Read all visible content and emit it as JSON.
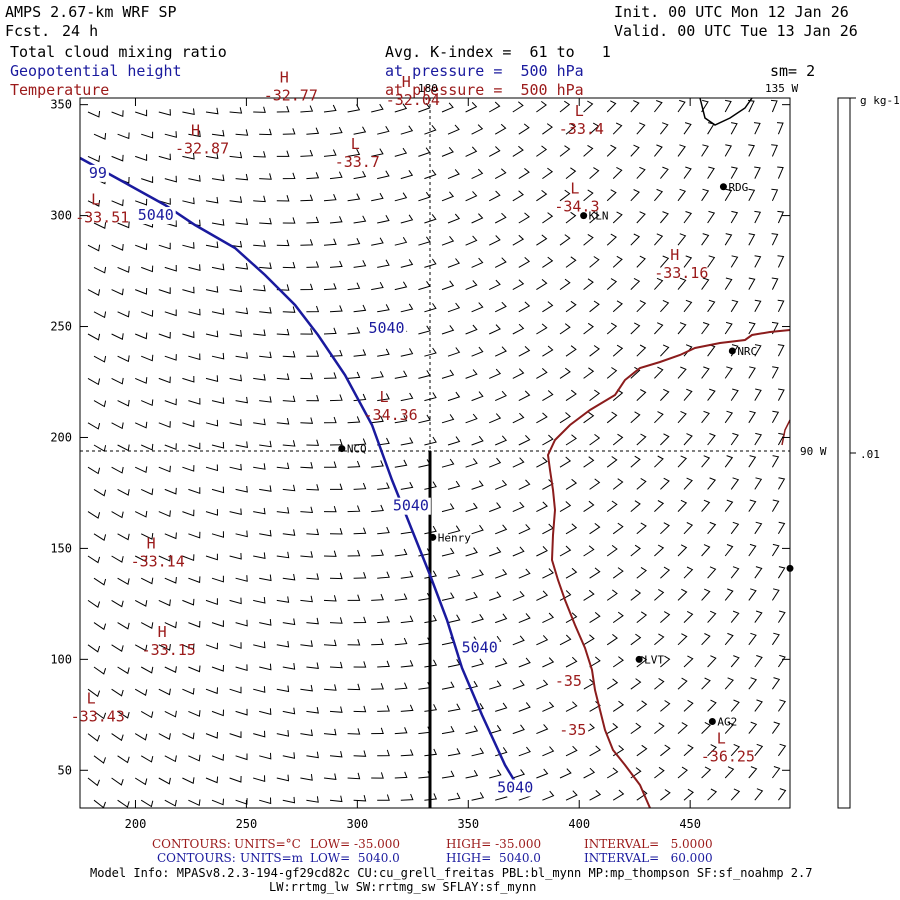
{
  "header": {
    "model": "AMPS 2.67-km WRF SP",
    "fcst_label": "Fcst.",
    "fcst_value": "24 h",
    "init": "Init. 00 UTC Mon 12 Jan 26",
    "valid": "Valid. 00 UTC Tue 13 Jan 26",
    "field1": "Total cloud mixing ratio",
    "field2": "Geopotential height",
    "field3": "Temperature",
    "avg": "Avg. K-index =  61 to   1",
    "pressure1": "at pressure =  500 hPa",
    "pressure2": "at pressure =  500 hPa",
    "sm": "sm= 2"
  },
  "axes": {
    "x_ticks": [
      "200",
      "250",
      "300",
      "350",
      "400",
      "450"
    ],
    "y_ticks": [
      "350",
      "300",
      "250",
      "200",
      "150",
      "100",
      "50"
    ]
  },
  "map_labels": {
    "lon180": "180",
    "lon135": "135 W",
    "lon90": "90 W",
    "colorbar_unit": "g kg-1",
    "colorbar_value": ".01"
  },
  "stations": [
    {
      "name": "LVT",
      "x": 427,
      "y": 100
    },
    {
      "name": "RDG",
      "x": 465,
      "y": 313
    },
    {
      "name": "KLN",
      "x": 402,
      "y": 300
    },
    {
      "name": "NRC",
      "x": 469,
      "y": 239
    },
    {
      "name": "NCQ",
      "x": 293,
      "y": 195
    },
    {
      "name": "Henry",
      "x": 334,
      "y": 155
    },
    {
      "name": "AG2",
      "x": 460,
      "y": 72
    },
    {
      "name": "",
      "x": 495,
      "y": 141
    }
  ],
  "highs_lows": [
    {
      "type": "H",
      "value": "-32.77",
      "x": 265,
      "y": 360
    },
    {
      "type": "H",
      "value": "-32.04",
      "x": 320,
      "y": 358
    },
    {
      "type": "L",
      "value": "-33.4",
      "x": 398,
      "y": 345
    },
    {
      "type": "H",
      "value": "-32.87",
      "x": 225,
      "y": 336
    },
    {
      "type": "L",
      "value": "-33.7",
      "x": 297,
      "y": 330
    },
    {
      "type": "L",
      "value": "-34.3",
      "x": 396,
      "y": 310
    },
    {
      "type": "L",
      "value": "-33.51",
      "x": 180,
      "y": 305
    },
    {
      "type": "H",
      "value": "-33.16",
      "x": 441,
      "y": 280
    },
    {
      "type": "L",
      "value": "-34.36",
      "x": 310,
      "y": 216
    },
    {
      "type": "H",
      "value": "-33.14",
      "x": 205,
      "y": 150
    },
    {
      "type": "H",
      "value": "-33.15",
      "x": 210,
      "y": 110
    },
    {
      "type": "L",
      "value": "-33.43",
      "x": 178,
      "y": 80
    },
    {
      "type": "L",
      "value": "-36.25",
      "x": 462,
      "y": 62
    }
  ],
  "contour_labels": [
    {
      "text": "5040",
      "kind": "height",
      "x": 201,
      "y": 298
    },
    {
      "text": "5040",
      "kind": "height",
      "x": 305,
      "y": 247
    },
    {
      "text": "5040",
      "kind": "height",
      "x": 316,
      "y": 167
    },
    {
      "text": "5040",
      "kind": "height",
      "x": 347,
      "y": 103
    },
    {
      "text": "5040",
      "kind": "height",
      "x": 363,
      "y": 40
    },
    {
      "text": "-35",
      "kind": "temp",
      "x": 389,
      "y": 88
    },
    {
      "text": "-35",
      "kind": "temp",
      "x": 391,
      "y": 66
    },
    {
      "text": "99",
      "kind": "height",
      "x": 179,
      "y": 317
    }
  ],
  "footer": {
    "c1_label": "CONTOURS:",
    "c1_units": "UNITS=°C",
    "c1_low": "LOW= -35.000",
    "c1_high": "HIGH= -35.000",
    "c1_int": "INTERVAL=   5.0000",
    "c2_label": "CONTOURS:",
    "c2_units": "UNITS=m",
    "c2_low": "LOW=  5040.0",
    "c2_high": "HIGH=  5040.0",
    "c2_int": "INTERVAL=   60.000",
    "model_info1": "Model Info: MPASv8.2.3-194-gf29cd82c CU:cu_grell_freitas PBL:bl_mynn MP:mp_thompson SF:sf_noahmp 2.7",
    "model_info2": "LW:rrtmg_lw SW:rrtmg_sw SFLAY:sf_mynn"
  },
  "colors": {
    "height_contour": "#1a1a9e",
    "temp_contour": "#8b1c1c",
    "label_red": "#9b1a1a"
  }
}
